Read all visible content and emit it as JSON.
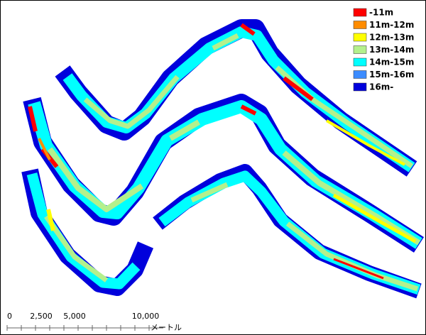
{
  "legend": [
    {
      "label": "-11m",
      "color": "#ff0000"
    },
    {
      "label": "11m-12m",
      "color": "#ff8c00"
    },
    {
      "label": "12m-13m",
      "color": "#ffff00"
    },
    {
      "label": "13m-14m",
      "color": "#b4f08c"
    },
    {
      "label": "14m-15m",
      "color": "#00ffff"
    },
    {
      "label": "15m-16m",
      "color": "#3c8cff"
    },
    {
      "label": "16m-",
      "color": "#0000dc"
    }
  ],
  "scale_bar": {
    "labels": [
      "0",
      "2,500",
      "5,000",
      "10,000"
    ],
    "unit": "メートル"
  }
}
